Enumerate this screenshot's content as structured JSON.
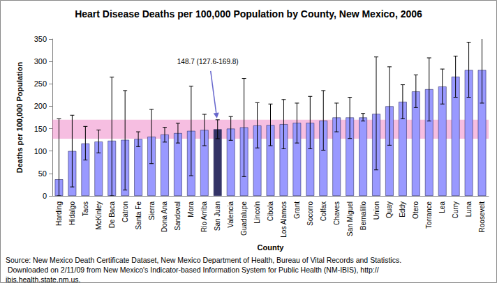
{
  "chart_data": {
    "type": "bar",
    "title": "Heart Disease Deaths per 100,000 Population by County, New Mexico, 2006",
    "x_label": "County",
    "y_label": "Deaths per 100,000 Population",
    "categories": [
      "Harding",
      "Hidalgo",
      "Taos",
      "McKinley",
      "De Baca",
      "Catron",
      "Santa Fe",
      "Sierra",
      "Dona Ana",
      "Sandoval",
      "Mora",
      "Rio Arriba",
      "San Juan",
      "Valencia",
      "Guadalupe",
      "Lincoln",
      "Cibola",
      "Los Alamos",
      "Grant",
      "Socorro",
      "Colfax",
      "Chaves",
      "San Miguel",
      "Bernalillo",
      "Union",
      "Quay",
      "Eddy",
      "Otero",
      "Torrance",
      "Lea",
      "Curry",
      "Luna",
      "Roosevelt"
    ],
    "values": [
      37,
      100,
      117,
      121,
      123,
      125,
      127,
      132,
      137,
      140,
      145,
      147,
      148.7,
      150,
      153,
      157,
      158,
      160,
      163,
      163,
      168,
      175,
      175,
      175,
      183,
      200,
      210,
      233,
      238,
      244,
      266,
      281,
      281
    ],
    "lower": [
      0,
      20,
      80,
      96,
      0,
      13,
      110,
      72,
      120,
      118,
      45,
      112,
      127.6,
      124,
      43,
      107,
      112,
      105,
      118,
      105,
      102,
      143,
      128,
      167,
      58,
      113,
      172,
      197,
      167,
      205,
      220,
      220,
      207
    ],
    "upper": [
      172,
      180,
      155,
      147,
      265,
      235,
      143,
      193,
      153,
      162,
      245,
      182,
      169.8,
      177,
      262,
      208,
      205,
      215,
      207,
      222,
      235,
      207,
      220,
      184,
      310,
      288,
      248,
      270,
      308,
      283,
      312,
      343,
      358
    ],
    "colors": [
      "#9999ff",
      "#9999ff",
      "#9999ff",
      "#9999ff",
      "#9999ff",
      "#9999ff",
      "#9999ff",
      "#9999ff",
      "#9999ff",
      "#9999ff",
      "#9999ff",
      "#9999ff",
      "#333366",
      "#9999ff",
      "#9999ff",
      "#9999ff",
      "#9999ff",
      "#9999ff",
      "#9999ff",
      "#9999ff",
      "#9999ff",
      "#9999ff",
      "#9999ff",
      "#9999ff",
      "#9999ff",
      "#9999ff",
      "#9999ff",
      "#9999ff",
      "#9999ff",
      "#9999ff",
      "#9999ff",
      "#9999ff",
      "#9999ff"
    ],
    "ylim": [
      0,
      350
    ],
    "yticks": [
      0,
      50,
      100,
      150,
      200,
      250,
      300,
      350
    ],
    "grid": false,
    "annotation": {
      "text": "148.7 (127.6-169.8)",
      "category": "San Juan",
      "value": 148.7,
      "band": [
        127.6,
        169.8
      ]
    },
    "source": "Source: New Mexico Death Certificate Dataset, New Mexico Department of Health, Bureau of Vital Records and Statistics. Downloaded on 2/11/09 from New Mexico's Indicator-based Information System for Public Health (NM-IBIS), http://ibis.health.state.nm.us."
  }
}
